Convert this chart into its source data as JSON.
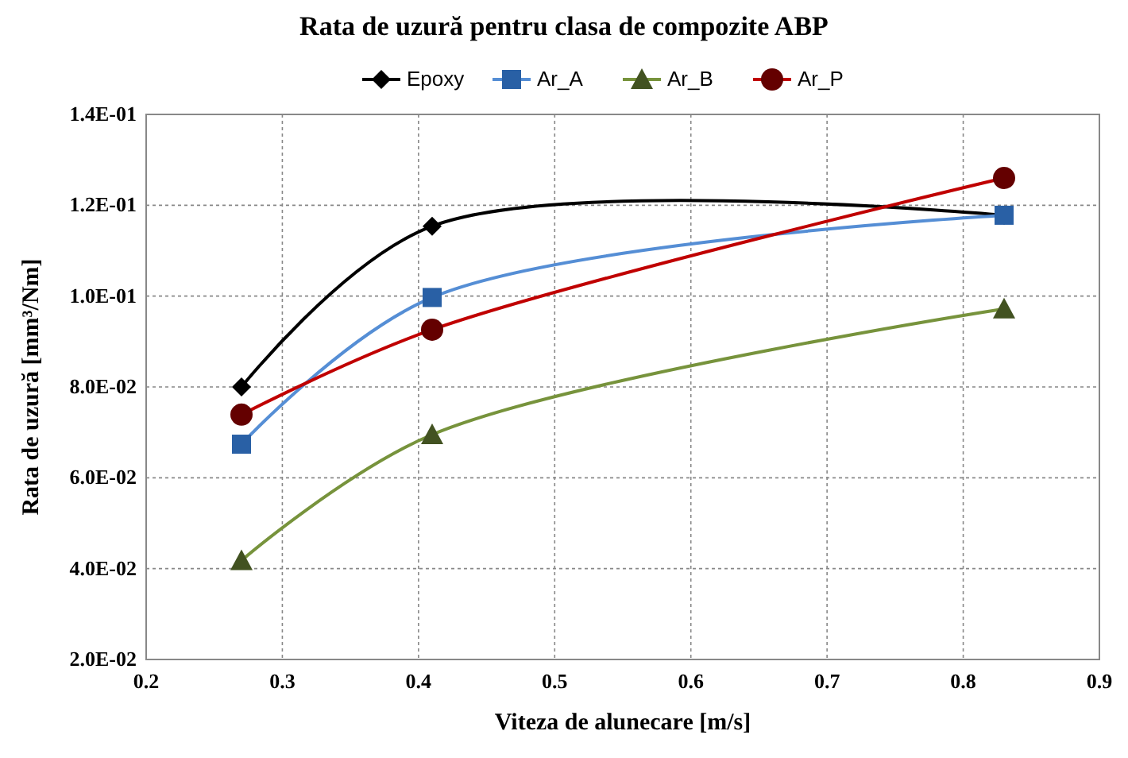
{
  "chart_data": {
    "type": "line",
    "title": "Rata de uzură pentru clasa de compozite ABP",
    "xlabel": "Viteza de alunecare [m/s]",
    "ylabel": "Rata de uzură [mm³/Nm]",
    "x": [
      0.27,
      0.41,
      0.83
    ],
    "series": [
      {
        "name": "Epoxy",
        "color": "#000000",
        "marker": "diamond",
        "values": [
          0.08,
          0.1154,
          0.1178
        ]
      },
      {
        "name": "Ar_A",
        "color": "#558ed5",
        "marker": "square",
        "values": [
          0.0674,
          0.0997,
          0.1178
        ]
      },
      {
        "name": "Ar_B",
        "color": "#77933c",
        "marker": "triangle",
        "values": [
          0.0418,
          0.0695,
          0.0972
        ]
      },
      {
        "name": "Ar_P",
        "color": "#c00000",
        "marker": "circle",
        "values": [
          0.0739,
          0.0926,
          0.126
        ]
      }
    ],
    "xlim": [
      0.2,
      0.9
    ],
    "xticks": [
      0.2,
      0.3,
      0.4,
      0.5,
      0.6,
      0.7,
      0.8,
      0.9
    ],
    "ylim": [
      0.02,
      0.14
    ],
    "yticks": [
      {
        "value": 0.02,
        "label": "2.0E-02"
      },
      {
        "value": 0.04,
        "label": "4.0E-02"
      },
      {
        "value": 0.06,
        "label": "6.0E-02"
      },
      {
        "value": 0.08,
        "label": "8.0E-02"
      },
      {
        "value": 0.1,
        "label": "1.0E-01"
      },
      {
        "value": 0.12,
        "label": "1.2E-01"
      },
      {
        "value": 0.14,
        "label": "1.4E-01"
      }
    ],
    "grid": true,
    "legend": "top",
    "line_style": "solid"
  }
}
